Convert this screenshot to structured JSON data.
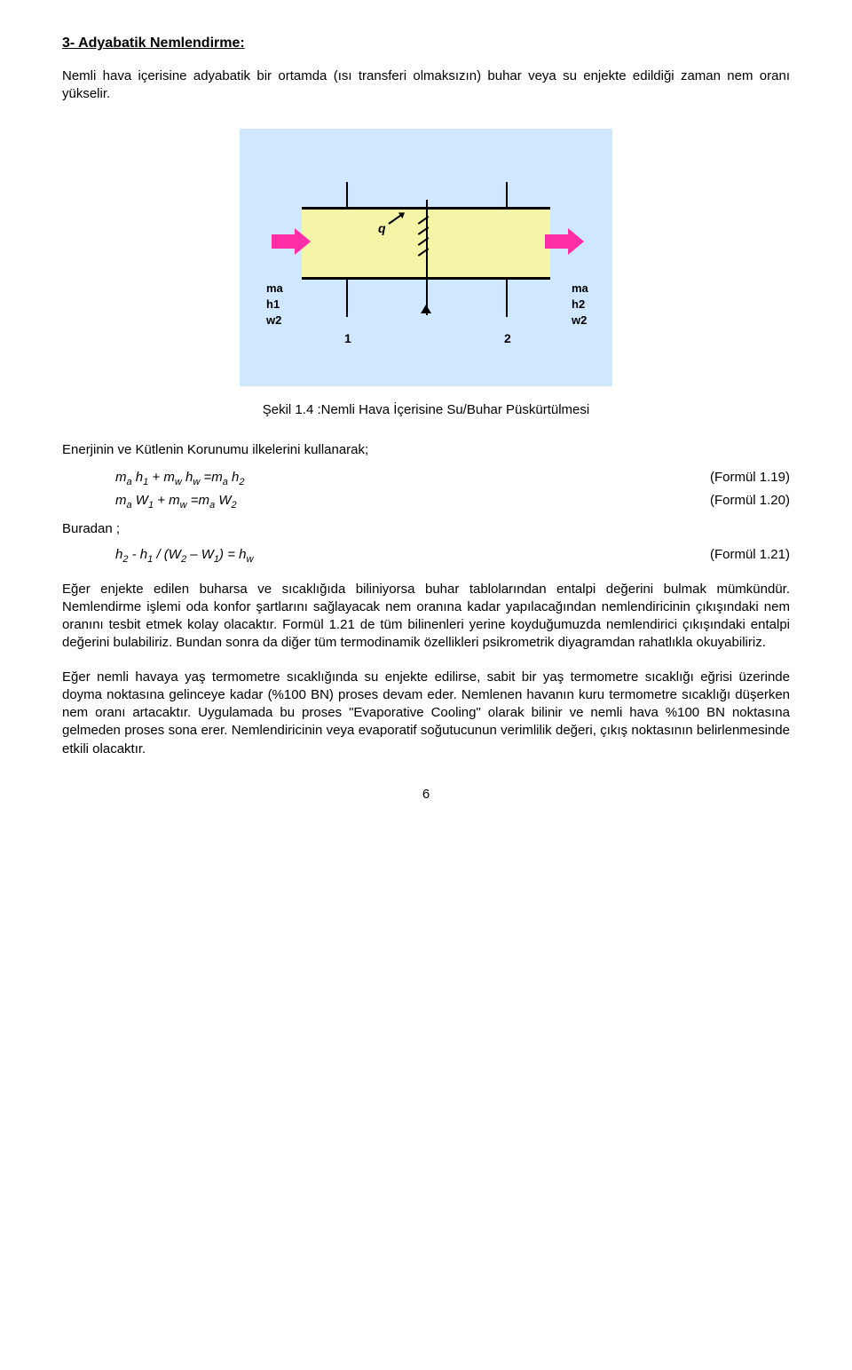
{
  "section": {
    "title": "3- Adyabatik Nemlendirme:"
  },
  "intro": "Nemli hava içerisine adyabatik bir ortamda (ısı transferi olmaksızın) buhar veya su enjekte edildiği zaman nem oranı yükselir.",
  "figure": {
    "caption": "Şekil 1.4 :Nemli Hava İçerisine Su/Buhar Püskürtülmesi",
    "bg_color": "#d0e8ff",
    "rect_fill": "#f4f5a6",
    "arrow_color": "#ff2ea6",
    "line_color": "#000000",
    "labels": {
      "ma": "ma",
      "h1": "h1",
      "h2": "h2",
      "w2": "w2",
      "q": "q",
      "n1": "1",
      "n2": "2"
    }
  },
  "eq_intro": "Enerjinin ve Kütlenin Korunumu ilkelerini kullanarak;",
  "equations": [
    {
      "lhs_html": "m<span class='sub'>a</span> h<span class='sub'>1</span> + m<span class='sub'>w</span> h<span class='sub'>w</span>  =m<span class='sub'>a</span> h<span class='sub'>2</span>",
      "ref": "(Formül 1.19)"
    },
    {
      "lhs_html": "m<span class='sub'>a</span> W<span class='sub'>1</span> + m<span class='sub'>w</span>  =m<span class='sub'>a</span> W<span class='sub'>2</span>",
      "ref": "(Formül 1.20)"
    }
  ],
  "buradan": "Buradan ;",
  "equation3": {
    "lhs_html": "h<span class='sub'>2</span> - h<span class='sub'>1</span>  /  (W<span class='sub'>2</span> – W<span class='sub'>1</span>) = h<span class='sub'>w</span>",
    "ref": "(Formül 1.21)"
  },
  "para1": "Eğer enjekte edilen buharsa  ve sıcaklığıda biliniyorsa buhar tablolarından entalpi değerini bulmak mümkündür. Nemlendirme işlemi oda konfor şartlarını sağlayacak nem oranına kadar yapılacağından nemlendiricinin çıkışındaki nem oranını tesbit etmek kolay olacaktır.  Formül 1.21 de tüm bilinenleri yerine koyduğumuzda nemlendirici çıkışındaki entalpi değerini bulabiliriz.  Bundan sonra da diğer tüm termodinamik özellikleri psikrometrik diyagramdan rahatlıkla okuyabiliriz.",
  "para2": "Eğer nemli havaya yaş termometre sıcaklığında su enjekte edilirse, sabit bir yaş termometre sıcaklığı eğrisi üzerinde doyma noktasına gelinceye kadar (%100 BN) proses devam eder. Nemlenen havanın kuru termometre sıcaklığı düşerken nem oranı artacaktır. Uygulamada bu proses \"Evaporative Cooling\" olarak bilinir ve nemli hava %100 BN noktasına gelmeden proses sona erer. Nemlendiricinin veya evaporatif soğutucunun verimlilik değeri, çıkış noktasının belirlenmesinde etkili olacaktır.",
  "page_number": "6"
}
